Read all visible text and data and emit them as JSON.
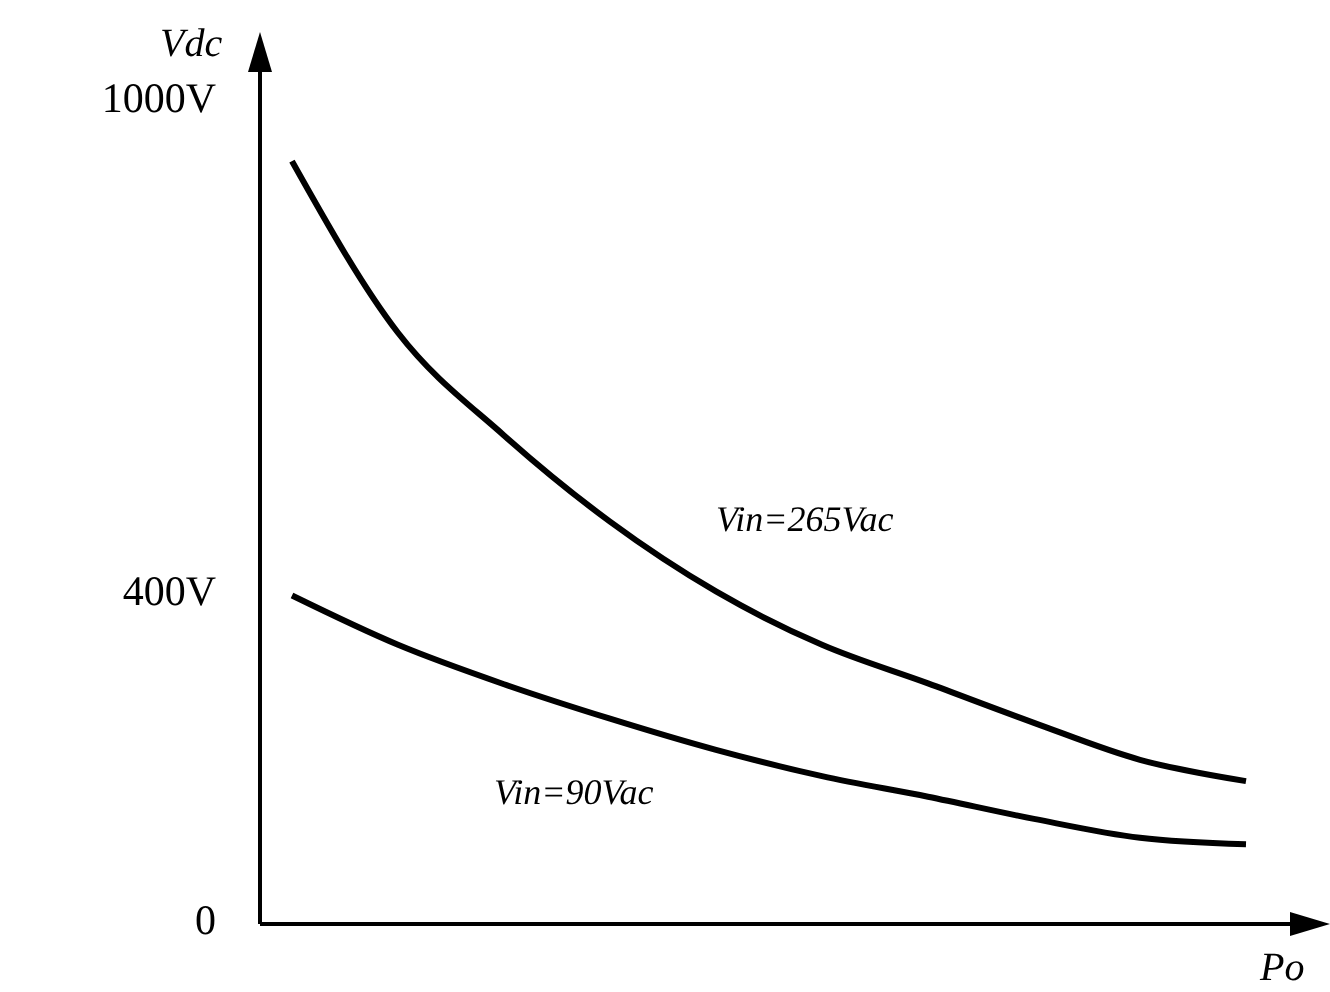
{
  "chart_data": {
    "type": "line",
    "xlabel": "Po",
    "ylabel": "Vdc",
    "categories": [
      null,
      null,
      null,
      null,
      null,
      null,
      null,
      null,
      null,
      null
    ],
    "series": [
      {
        "name": "Vin=265Vac",
        "color": "#000000",
        "values": [
          929,
          720,
          595,
          490,
          405,
          340,
          293,
          245,
          200,
          174
        ]
      },
      {
        "name": "Vin=90Vac",
        "color": "#000000",
        "values": [
          400,
          340,
          292,
          250,
          212,
          180,
          155,
          128,
          105,
          97
        ]
      }
    ],
    "ylim": [
      0,
      1040
    ],
    "yticks": [
      0,
      {
        "value": 400,
        "label": "400V"
      },
      {
        "value": 1000,
        "label": "1000V"
      }
    ],
    "grid": false,
    "legend": false,
    "marker": "none",
    "line_style": "solid"
  }
}
